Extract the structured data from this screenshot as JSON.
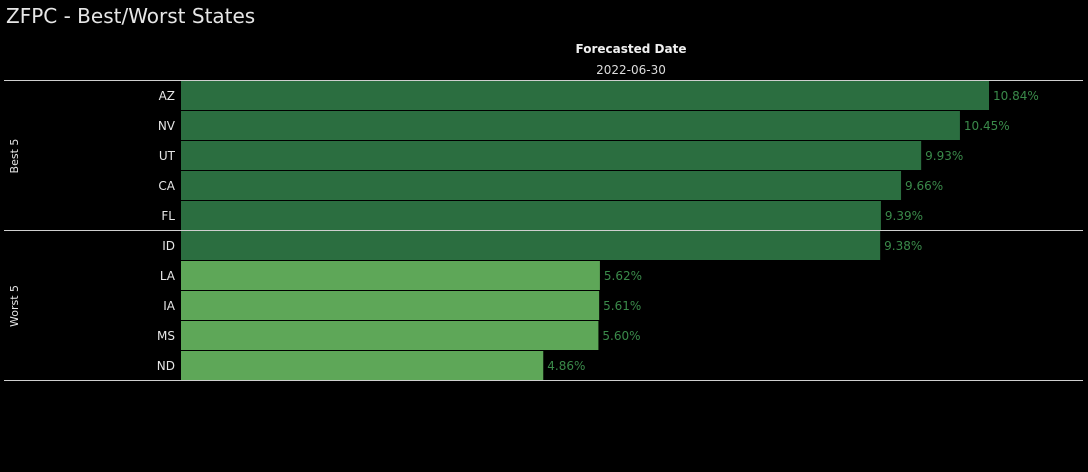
{
  "title": "ZFPC - Best/Worst States",
  "header": {
    "name": "Forecasted Date",
    "value": "2022-06-30"
  },
  "colors": {
    "best": "#2b6e40",
    "worst": "#5ea758",
    "value_label": "#3a8a4a",
    "background": "#000000"
  },
  "chart_data": {
    "type": "bar",
    "orientation": "horizontal",
    "title": "ZFPC - Best/Worst States",
    "column_header": "Forecasted Date",
    "column_value": "2022-06-30",
    "groups": [
      {
        "name": "Best 5",
        "categories": [
          "AZ",
          "NV",
          "UT",
          "CA",
          "FL"
        ],
        "values": [
          10.84,
          10.45,
          9.93,
          9.66,
          9.39
        ],
        "labels": [
          "10.84%",
          "10.45%",
          "9.93%",
          "9.66%",
          "9.39%"
        ]
      },
      {
        "name": "Worst 5",
        "categories": [
          "ID",
          "LA",
          "IA",
          "MS",
          "ND"
        ],
        "values": [
          9.38,
          5.62,
          5.61,
          5.6,
          4.86
        ],
        "labels": [
          "9.38%",
          "5.62%",
          "5.61%",
          "5.60%",
          "4.86%"
        ]
      }
    ],
    "xlim": [
      0,
      10.84
    ],
    "grid": false
  }
}
